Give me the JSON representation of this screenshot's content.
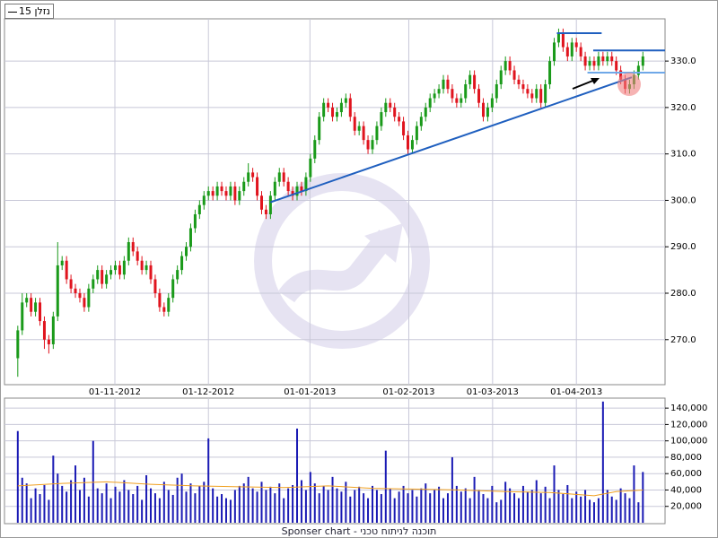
{
  "chart_data": {
    "type": "candlestick",
    "legend": "נזלן 15",
    "footer": "Sponser chart - תוכנה לניתוח טכני",
    "up_color": "#1a9a1a",
    "down_color": "#e0141e",
    "volume_color": "#1a1ab4",
    "ma_color": "#f0a020",
    "grid": true,
    "xlim": [
      -3,
      146
    ],
    "xticks": [
      {
        "value": 21.9,
        "label": "01-11-2012"
      },
      {
        "value": 43,
        "label": "01-12-2012"
      },
      {
        "value": 65.9,
        "label": "01-01-2013"
      },
      {
        "value": 88.2,
        "label": "01-02-2013"
      },
      {
        "value": 107.1,
        "label": "01-03-2013"
      },
      {
        "value": 126,
        "label": "01-04-2013"
      }
    ],
    "ylim": [
      260.3,
      339.1
    ],
    "yticks": [
      {
        "value": 270,
        "label": "270.0"
      },
      {
        "value": 280,
        "label": "280.0"
      },
      {
        "value": 290,
        "label": "290.0"
      },
      {
        "value": 300,
        "label": "300.0"
      },
      {
        "value": 310,
        "label": "310.0"
      },
      {
        "value": 320,
        "label": "320.0"
      },
      {
        "value": 330,
        "label": "330.0"
      }
    ],
    "ohlc": [
      [
        266,
        273,
        262,
        272
      ],
      [
        272,
        280,
        271,
        278
      ],
      [
        278,
        280,
        277,
        279
      ],
      [
        279,
        280,
        275,
        276
      ],
      [
        276,
        279,
        275,
        278
      ],
      [
        278,
        279,
        273,
        274
      ],
      [
        274,
        275,
        268,
        270
      ],
      [
        270,
        271,
        267,
        269
      ],
      [
        269,
        276,
        268,
        275
      ],
      [
        275,
        291,
        274,
        286
      ],
      [
        286,
        288,
        285,
        287
      ],
      [
        287,
        288,
        282,
        283
      ],
      [
        283,
        284,
        280,
        281
      ],
      [
        281,
        282,
        279,
        280
      ],
      [
        280,
        281,
        278,
        279
      ],
      [
        279,
        280,
        276,
        277
      ],
      [
        277,
        282,
        276,
        281
      ],
      [
        281,
        284,
        280,
        283
      ],
      [
        283,
        286,
        282,
        285
      ],
      [
        285,
        286,
        281,
        282
      ],
      [
        282,
        285,
        281,
        284
      ],
      [
        284,
        286,
        283,
        285
      ],
      [
        285,
        287,
        284,
        286
      ],
      [
        286,
        287,
        283,
        284
      ],
      [
        284,
        288,
        283,
        287
      ],
      [
        287,
        292,
        286,
        291
      ],
      [
        291,
        292,
        288,
        289
      ],
      [
        289,
        290,
        286,
        287
      ],
      [
        287,
        288,
        284,
        285
      ],
      [
        285,
        287,
        284,
        286
      ],
      [
        286,
        287,
        282,
        283
      ],
      [
        283,
        284,
        279,
        280
      ],
      [
        280,
        281,
        276,
        277
      ],
      [
        277,
        278,
        275,
        276
      ],
      [
        276,
        280,
        275,
        279
      ],
      [
        279,
        284,
        278,
        283
      ],
      [
        283,
        286,
        282,
        285
      ],
      [
        285,
        289,
        284,
        288
      ],
      [
        288,
        291,
        287,
        290
      ],
      [
        290,
        295,
        289,
        294
      ],
      [
        294,
        298,
        293,
        297
      ],
      [
        297,
        300,
        296,
        299
      ],
      [
        299,
        302,
        298,
        301
      ],
      [
        301,
        303,
        300,
        302
      ],
      [
        302,
        303,
        300,
        301
      ],
      [
        301,
        304,
        300,
        303
      ],
      [
        303,
        304,
        301,
        302
      ],
      [
        302,
        303,
        300,
        301
      ],
      [
        301,
        304,
        300,
        303
      ],
      [
        303,
        304,
        299,
        300
      ],
      [
        300,
        303,
        299,
        302
      ],
      [
        302,
        305,
        301,
        304
      ],
      [
        304,
        308,
        303,
        306
      ],
      [
        306,
        307,
        304,
        305
      ],
      [
        305,
        306,
        300,
        301
      ],
      [
        301,
        302,
        297,
        298
      ],
      [
        298,
        299,
        296,
        297
      ],
      [
        297,
        302,
        296,
        301
      ],
      [
        301,
        305,
        300,
        304
      ],
      [
        304,
        307,
        303,
        306
      ],
      [
        306,
        307,
        303,
        304
      ],
      [
        304,
        305,
        301,
        302
      ],
      [
        302,
        303,
        300,
        301
      ],
      [
        301,
        304,
        300,
        303
      ],
      [
        303,
        304,
        301,
        302
      ],
      [
        302,
        306,
        301,
        305
      ],
      [
        305,
        310,
        304,
        309
      ],
      [
        309,
        314,
        308,
        313
      ],
      [
        313,
        319,
        312,
        318
      ],
      [
        318,
        322,
        317,
        321
      ],
      [
        321,
        322,
        319,
        320
      ],
      [
        320,
        321,
        317,
        318
      ],
      [
        318,
        320,
        317,
        319
      ],
      [
        319,
        322,
        318,
        321
      ],
      [
        321,
        323,
        320,
        322
      ],
      [
        322,
        323,
        317,
        318
      ],
      [
        318,
        319,
        314,
        315
      ],
      [
        315,
        317,
        314,
        316
      ],
      [
        316,
        317,
        312,
        313
      ],
      [
        313,
        314,
        310,
        311
      ],
      [
        311,
        314,
        310,
        313
      ],
      [
        313,
        317,
        312,
        316
      ],
      [
        316,
        320,
        315,
        319
      ],
      [
        319,
        322,
        318,
        321
      ],
      [
        321,
        322,
        319,
        320
      ],
      [
        320,
        321,
        317,
        318
      ],
      [
        318,
        319,
        316,
        317
      ],
      [
        317,
        318,
        313,
        314
      ],
      [
        314,
        315,
        310,
        311
      ],
      [
        311,
        314,
        310,
        313
      ],
      [
        313,
        317,
        312,
        316
      ],
      [
        316,
        319,
        315,
        318
      ],
      [
        318,
        321,
        317,
        320
      ],
      [
        320,
        323,
        319,
        322
      ],
      [
        322,
        324,
        321,
        323
      ],
      [
        323,
        325,
        322,
        324
      ],
      [
        324,
        327,
        323,
        326
      ],
      [
        326,
        327,
        323,
        324
      ],
      [
        324,
        325,
        321,
        322
      ],
      [
        322,
        323,
        320,
        321
      ],
      [
        321,
        323,
        320,
        322
      ],
      [
        322,
        326,
        321,
        325
      ],
      [
        325,
        328,
        324,
        327
      ],
      [
        327,
        328,
        323,
        324
      ],
      [
        324,
        325,
        320,
        321
      ],
      [
        321,
        322,
        317,
        318
      ],
      [
        318,
        321,
        317,
        320
      ],
      [
        320,
        323,
        319,
        322
      ],
      [
        322,
        326,
        321,
        325
      ],
      [
        325,
        329,
        324,
        328
      ],
      [
        328,
        331,
        327,
        330
      ],
      [
        330,
        331,
        327,
        328
      ],
      [
        328,
        329,
        325,
        326
      ],
      [
        326,
        327,
        324,
        325
      ],
      [
        325,
        326,
        323,
        324
      ],
      [
        324,
        325,
        322,
        323
      ],
      [
        323,
        324,
        321,
        322
      ],
      [
        322,
        325,
        321,
        324
      ],
      [
        324,
        325,
        320,
        321
      ],
      [
        321,
        326,
        320,
        325
      ],
      [
        325,
        331,
        324,
        330
      ],
      [
        330,
        335,
        329,
        334
      ],
      [
        334,
        337,
        333,
        336
      ],
      [
        336,
        337,
        332,
        333
      ],
      [
        333,
        334,
        330,
        331
      ],
      [
        331,
        335,
        330,
        334
      ],
      [
        334,
        335,
        332,
        333
      ],
      [
        333,
        334,
        330,
        331
      ],
      [
        331,
        332,
        328,
        329
      ],
      [
        329,
        331,
        328,
        330
      ],
      [
        330,
        331,
        328,
        329
      ],
      [
        329,
        332,
        328,
        331
      ],
      [
        331,
        332,
        329,
        330
      ],
      [
        330,
        332,
        329,
        331
      ],
      [
        331,
        332,
        329,
        330
      ],
      [
        330,
        331,
        327,
        328
      ],
      [
        328,
        329,
        325,
        326
      ],
      [
        326,
        327,
        323,
        324
      ],
      [
        324,
        326,
        323,
        325
      ],
      [
        325,
        328,
        324,
        327
      ],
      [
        327,
        330,
        326,
        329
      ],
      [
        329,
        332,
        328,
        331
      ]
    ],
    "trendlines": [
      {
        "x": [
          57,
          138.5
        ],
        "y": [
          299.6,
          326.5
        ],
        "color": "#1f5fbf"
      },
      {
        "x": [
          121.6,
          131.7
        ],
        "y": [
          336,
          336
        ],
        "color": "#1f5fbf"
      },
      {
        "x": [
          129.8,
          146
        ],
        "y": [
          332.3,
          332.3
        ],
        "color": "#1f5fbf"
      },
      {
        "x": [
          128.5,
          146
        ],
        "y": [
          327.5,
          327.5
        ],
        "color": "#6fa8e8"
      }
    ],
    "volume_ylim": [
      -1100,
      152200
    ],
    "volume_yticks": [
      {
        "value": 20000,
        "label": "20,000"
      },
      {
        "value": 40000,
        "label": "40,000"
      },
      {
        "value": 60000,
        "label": "60,000"
      },
      {
        "value": 80000,
        "label": "80,000"
      },
      {
        "value": 100000,
        "label": "100,000"
      },
      {
        "value": 120000,
        "label": "120,000"
      },
      {
        "value": 140000,
        "label": "140,000"
      }
    ],
    "volume": [
      112000,
      55000,
      48000,
      30000,
      42000,
      35000,
      46000,
      28000,
      82000,
      60000,
      45000,
      38000,
      52000,
      70000,
      40000,
      55000,
      32000,
      100000,
      42000,
      36000,
      48000,
      30000,
      44000,
      38000,
      52000,
      40000,
      35000,
      45000,
      28000,
      58000,
      42000,
      36000,
      30000,
      50000,
      40000,
      34000,
      55000,
      60000,
      38000,
      48000,
      36000,
      45000,
      50000,
      103000,
      42000,
      32000,
      35000,
      30000,
      28000,
      40000,
      45000,
      48000,
      56000,
      42000,
      38000,
      50000,
      40000,
      44000,
      36000,
      48000,
      30000,
      42000,
      46000,
      115000,
      52000,
      40000,
      62000,
      48000,
      36000,
      45000,
      40000,
      56000,
      42000,
      38000,
      50000,
      32000,
      40000,
      44000,
      36000,
      30000,
      45000,
      40000,
      35000,
      88000,
      42000,
      30000,
      38000,
      45000,
      36000,
      40000,
      32000,
      42000,
      48000,
      36000,
      40000,
      44000,
      30000,
      36000,
      80000,
      45000,
      38000,
      42000,
      30000,
      56000,
      40000,
      35000,
      30000,
      45000,
      25000,
      28000,
      50000,
      42000,
      36000,
      30000,
      45000,
      38000,
      40000,
      52000,
      36000,
      44000,
      30000,
      70000,
      40000,
      35000,
      46000,
      30000,
      38000,
      32000,
      40000,
      28000,
      25000,
      30000,
      148000,
      40000,
      32000,
      28000,
      42000,
      36000,
      30000,
      70000,
      25000,
      62000
    ],
    "volume_avg": {
      "x": [
        0,
        10,
        20,
        30,
        40,
        50,
        60,
        70,
        80,
        90,
        100,
        110,
        120,
        130,
        135,
        141
      ],
      "values": [
        45000,
        48000,
        50000,
        47000,
        45000,
        44000,
        43000,
        45000,
        42000,
        41000,
        40000,
        38000,
        37000,
        33000,
        38000,
        40000
      ]
    }
  }
}
